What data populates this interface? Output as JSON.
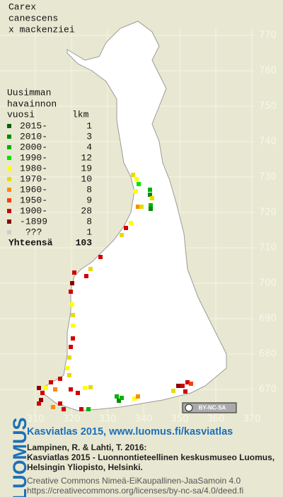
{
  "title": [
    "Carex",
    "canescens",
    "x mackenziei"
  ],
  "legend": {
    "heading": [
      "Uusimman",
      "havainnon"
    ],
    "col_year": "vuosi",
    "col_count": "lkm",
    "items": [
      {
        "label": "2015-",
        "count": 1,
        "color": "#006400"
      },
      {
        "label": "2010-",
        "count": 3,
        "color": "#008c00"
      },
      {
        "label": "2000-",
        "count": 4,
        "color": "#00b400"
      },
      {
        "label": "1990-",
        "count": 12,
        "color": "#00e600"
      },
      {
        "label": "1980-",
        "count": 19,
        "color": "#ffff00"
      },
      {
        "label": "1970-",
        "count": 10,
        "color": "#e6dc00"
      },
      {
        "label": "1960-",
        "count": 8,
        "color": "#ff8c00"
      },
      {
        "label": "1950-",
        "count": 9,
        "color": "#ff3c00"
      },
      {
        "label": "1900-",
        "count": 28,
        "color": "#d20000"
      },
      {
        "label": "-1899",
        "count": 8,
        "color": "#8c0000"
      },
      {
        "label": "???",
        "count": 1,
        "color": "#cccccc"
      }
    ],
    "total_label": "Yhteensä",
    "total": 103
  },
  "y_grid": [
    770,
    760,
    750,
    740,
    730,
    720,
    710,
    700,
    690,
    680,
    670
  ],
  "x_grid": [
    310,
    320,
    330,
    340,
    350,
    360,
    370
  ],
  "badge": "BY-NC-SA",
  "footer": {
    "brand": "LUOMUS",
    "link": "Kasviatlas 2015, www.luomus.fi/kasviatlas",
    "citation": [
      "Lampinen, R. & Lahti, T. 2016:",
      "Kasviatlas 2015 - Luonnontieteellinen keskusmuseo Luomus,",
      "Helsingin Yliopisto, Helsinki."
    ],
    "license": [
      "Creative Commons Nimeä-EiKaupallinen-JaaSamoin 4.0",
      "https://creativecommons.org/licenses/by-nc-sa/4.0/deed.fi"
    ]
  }
}
